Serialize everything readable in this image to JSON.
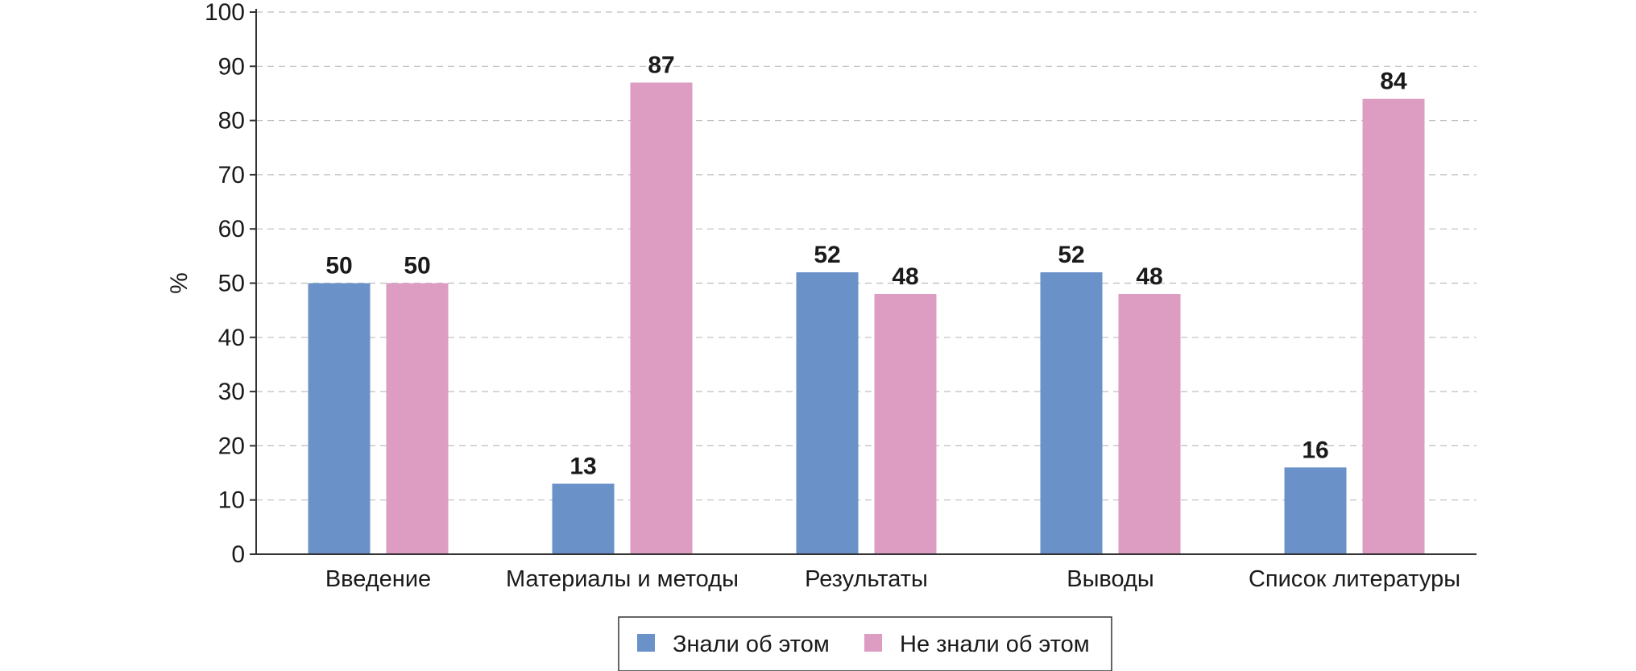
{
  "chart_data": {
    "type": "bar",
    "categories": [
      "Введение",
      "Материалы и методы",
      "Результаты",
      "Выводы",
      "Список литературы"
    ],
    "series": [
      {
        "name": "Знали об этом",
        "color": "#6a92c9",
        "values": [
          50,
          13,
          52,
          52,
          16
        ],
        "labels": [
          "50",
          "13",
          "52",
          "52",
          "16"
        ]
      },
      {
        "name": "Не знали об этом",
        "color": "#dd9dc3",
        "values": [
          50,
          87,
          48,
          48,
          84
        ],
        "labels": [
          "50",
          "87",
          "48",
          "48",
          "84"
        ]
      }
    ],
    "ylabel": "%",
    "xlabel": "",
    "ylim": [
      0,
      100
    ],
    "yticks": [
      0,
      10,
      20,
      30,
      40,
      50,
      60,
      70,
      80,
      90,
      100
    ],
    "grid": true,
    "legend_position": "bottom-center"
  }
}
